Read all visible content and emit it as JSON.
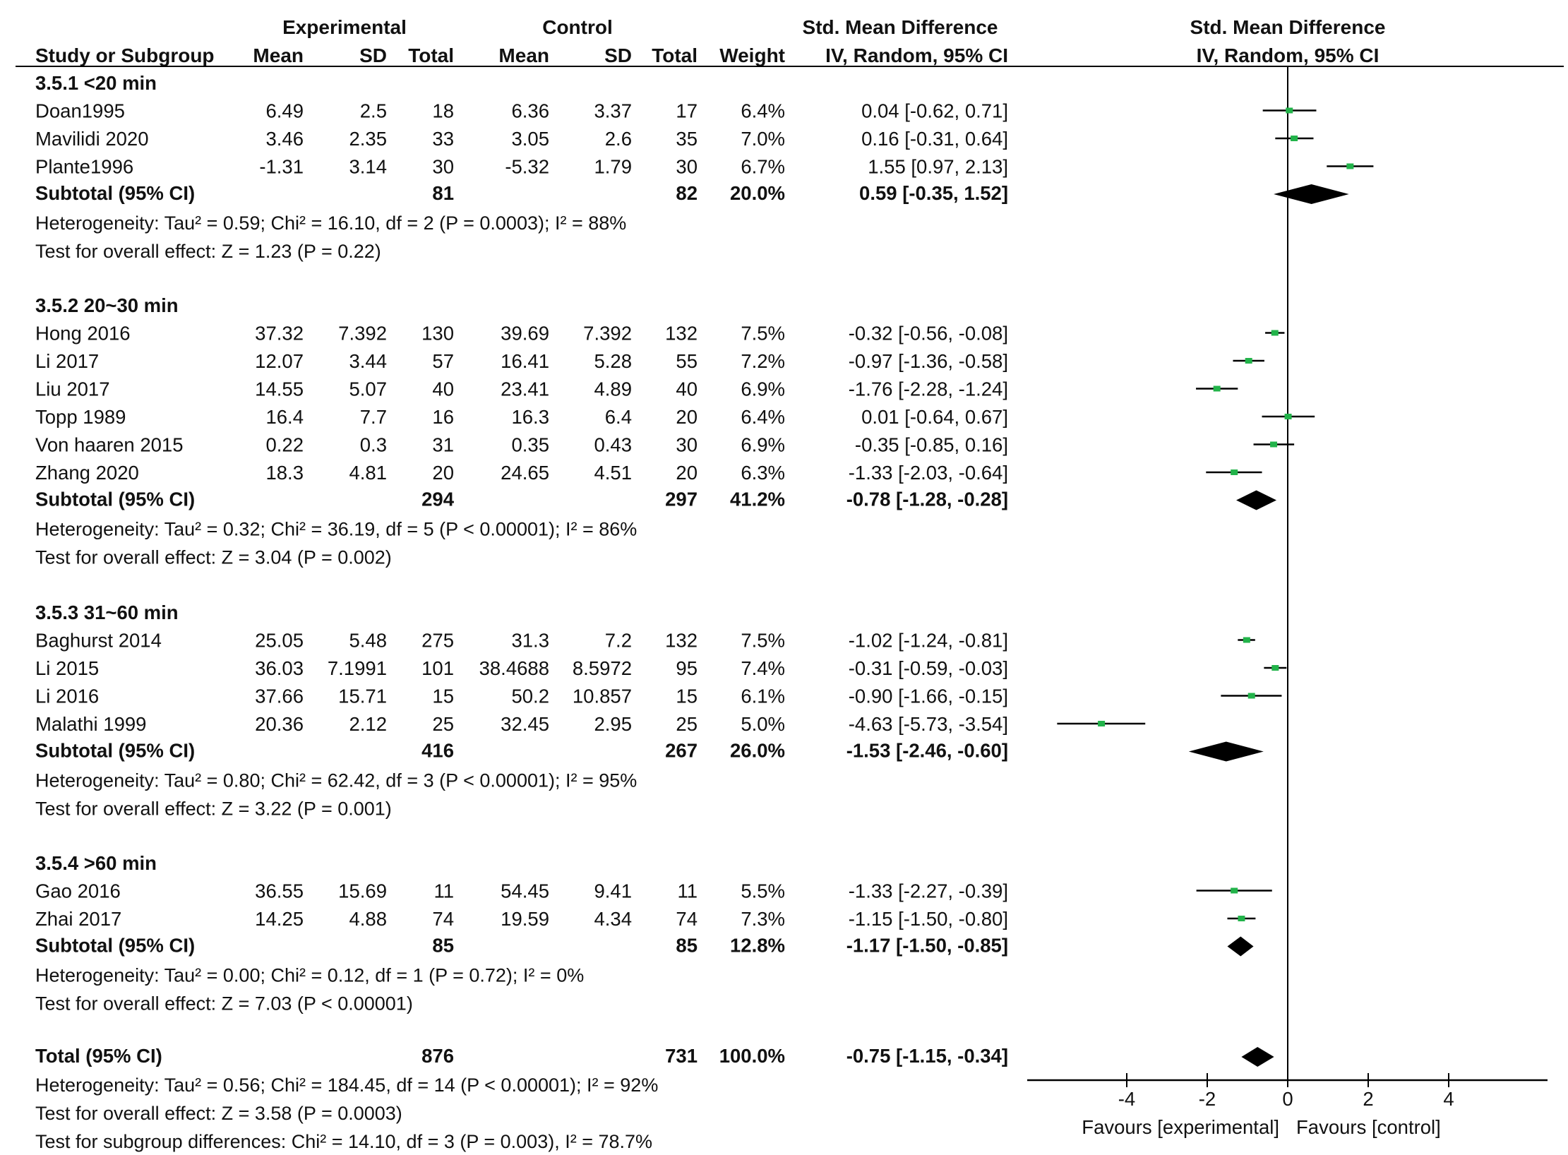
{
  "chart_data": {
    "type": "forest",
    "headers": {
      "group_experimental": "Experimental",
      "group_control": "Control",
      "group_smd": "Std. Mean Difference",
      "plot_title": "Std. Mean Difference",
      "col_study": "Study or Subgroup",
      "col_exp_mean": "Mean",
      "col_exp_sd": "SD",
      "col_exp_total": "Total",
      "col_ctl_mean": "Mean",
      "col_ctl_sd": "SD",
      "col_ctl_total": "Total",
      "col_weight": "Weight",
      "col_smd_method": "IV, Random, 95% CI",
      "plot_method": "IV, Random, 95% CI"
    },
    "subgroups": [
      {
        "title": "3.5.1 <20 min",
        "studies": [
          {
            "study": "Doan1995",
            "exp_mean": "6.49",
            "exp_sd": "2.5",
            "exp_total": "18",
            "ctl_mean": "6.36",
            "ctl_sd": "3.37",
            "ctl_total": "17",
            "weight": "6.4%",
            "ci_text": "0.04 [-0.62, 0.71]",
            "est": 0.04,
            "lo": -0.62,
            "hi": 0.71
          },
          {
            "study": "Mavilidi 2020",
            "exp_mean": "3.46",
            "exp_sd": "2.35",
            "exp_total": "33",
            "ctl_mean": "3.05",
            "ctl_sd": "2.6",
            "ctl_total": "35",
            "weight": "7.0%",
            "ci_text": "0.16 [-0.31, 0.64]",
            "est": 0.16,
            "lo": -0.31,
            "hi": 0.64
          },
          {
            "study": "Plante1996",
            "exp_mean": "-1.31",
            "exp_sd": "3.14",
            "exp_total": "30",
            "ctl_mean": "-5.32",
            "ctl_sd": "1.79",
            "ctl_total": "30",
            "weight": "6.7%",
            "ci_text": "1.55 [0.97, 2.13]",
            "est": 1.55,
            "lo": 0.97,
            "hi": 2.13
          }
        ],
        "subtotal": {
          "label": "Subtotal (95% CI)",
          "exp_total": "81",
          "ctl_total": "82",
          "weight": "20.0%",
          "ci_text": "0.59 [-0.35, 1.52]",
          "est": 0.59,
          "lo": -0.35,
          "hi": 1.52
        },
        "heterogeneity": "Heterogeneity: Tau² = 0.59; Chi² = 16.10, df = 2 (P = 0.0003); I² = 88%",
        "overall_effect": "Test for overall effect: Z = 1.23 (P = 0.22)"
      },
      {
        "title": "3.5.2 20~30 min",
        "studies": [
          {
            "study": "Hong 2016",
            "exp_mean": "37.32",
            "exp_sd": "7.392",
            "exp_total": "130",
            "ctl_mean": "39.69",
            "ctl_sd": "7.392",
            "ctl_total": "132",
            "weight": "7.5%",
            "ci_text": "-0.32 [-0.56, -0.08]",
            "est": -0.32,
            "lo": -0.56,
            "hi": -0.08
          },
          {
            "study": "Li 2017",
            "exp_mean": "12.07",
            "exp_sd": "3.44",
            "exp_total": "57",
            "ctl_mean": "16.41",
            "ctl_sd": "5.28",
            "ctl_total": "55",
            "weight": "7.2%",
            "ci_text": "-0.97 [-1.36, -0.58]",
            "est": -0.97,
            "lo": -1.36,
            "hi": -0.58
          },
          {
            "study": "Liu 2017",
            "exp_mean": "14.55",
            "exp_sd": "5.07",
            "exp_total": "40",
            "ctl_mean": "23.41",
            "ctl_sd": "4.89",
            "ctl_total": "40",
            "weight": "6.9%",
            "ci_text": "-1.76 [-2.28, -1.24]",
            "est": -1.76,
            "lo": -2.28,
            "hi": -1.24
          },
          {
            "study": "Topp 1989",
            "exp_mean": "16.4",
            "exp_sd": "7.7",
            "exp_total": "16",
            "ctl_mean": "16.3",
            "ctl_sd": "6.4",
            "ctl_total": "20",
            "weight": "6.4%",
            "ci_text": "0.01 [-0.64, 0.67]",
            "est": 0.01,
            "lo": -0.64,
            "hi": 0.67
          },
          {
            "study": "Von haaren 2015",
            "exp_mean": "0.22",
            "exp_sd": "0.3",
            "exp_total": "31",
            "ctl_mean": "0.35",
            "ctl_sd": "0.43",
            "ctl_total": "30",
            "weight": "6.9%",
            "ci_text": "-0.35 [-0.85, 0.16]",
            "est": -0.35,
            "lo": -0.85,
            "hi": 0.16
          },
          {
            "study": "Zhang 2020",
            "exp_mean": "18.3",
            "exp_sd": "4.81",
            "exp_total": "20",
            "ctl_mean": "24.65",
            "ctl_sd": "4.51",
            "ctl_total": "20",
            "weight": "6.3%",
            "ci_text": "-1.33 [-2.03, -0.64]",
            "est": -1.33,
            "lo": -2.03,
            "hi": -0.64
          }
        ],
        "subtotal": {
          "label": "Subtotal (95% CI)",
          "exp_total": "294",
          "ctl_total": "297",
          "weight": "41.2%",
          "ci_text": "-0.78 [-1.28, -0.28]",
          "est": -0.78,
          "lo": -1.28,
          "hi": -0.28
        },
        "heterogeneity": "Heterogeneity: Tau² = 0.32; Chi² = 36.19, df = 5 (P < 0.00001); I² = 86%",
        "overall_effect": "Test for overall effect: Z = 3.04 (P = 0.002)"
      },
      {
        "title": "3.5.3 31~60 min",
        "studies": [
          {
            "study": "Baghurst 2014",
            "exp_mean": "25.05",
            "exp_sd": "5.48",
            "exp_total": "275",
            "ctl_mean": "31.3",
            "ctl_sd": "7.2",
            "ctl_total": "132",
            "weight": "7.5%",
            "ci_text": "-1.02 [-1.24, -0.81]",
            "est": -1.02,
            "lo": -1.24,
            "hi": -0.81
          },
          {
            "study": "Li 2015",
            "exp_mean": "36.03",
            "exp_sd": "7.1991",
            "exp_total": "101",
            "ctl_mean": "38.4688",
            "ctl_sd": "8.5972",
            "ctl_total": "95",
            "weight": "7.4%",
            "ci_text": "-0.31 [-0.59, -0.03]",
            "est": -0.31,
            "lo": -0.59,
            "hi": -0.03
          },
          {
            "study": "Li 2016",
            "exp_mean": "37.66",
            "exp_sd": "15.71",
            "exp_total": "15",
            "ctl_mean": "50.2",
            "ctl_sd": "10.857",
            "ctl_total": "15",
            "weight": "6.1%",
            "ci_text": "-0.90 [-1.66, -0.15]",
            "est": -0.9,
            "lo": -1.66,
            "hi": -0.15
          },
          {
            "study": "Malathi 1999",
            "exp_mean": "20.36",
            "exp_sd": "2.12",
            "exp_total": "25",
            "ctl_mean": "32.45",
            "ctl_sd": "2.95",
            "ctl_total": "25",
            "weight": "5.0%",
            "ci_text": "-4.63 [-5.73, -3.54]",
            "est": -4.63,
            "lo": -5.73,
            "hi": -3.54
          }
        ],
        "subtotal": {
          "label": "Subtotal (95% CI)",
          "exp_total": "416",
          "ctl_total": "267",
          "weight": "26.0%",
          "ci_text": "-1.53 [-2.46, -0.60]",
          "est": -1.53,
          "lo": -2.46,
          "hi": -0.6
        },
        "heterogeneity": "Heterogeneity: Tau² = 0.80; Chi² = 62.42, df = 3 (P < 0.00001); I² = 95%",
        "overall_effect": "Test for overall effect: Z = 3.22 (P = 0.001)"
      },
      {
        "title": "3.5.4 >60 min",
        "studies": [
          {
            "study": "Gao 2016",
            "exp_mean": "36.55",
            "exp_sd": "15.69",
            "exp_total": "11",
            "ctl_mean": "54.45",
            "ctl_sd": "9.41",
            "ctl_total": "11",
            "weight": "5.5%",
            "ci_text": "-1.33 [-2.27, -0.39]",
            "est": -1.33,
            "lo": -2.27,
            "hi": -0.39
          },
          {
            "study": "Zhai 2017",
            "exp_mean": "14.25",
            "exp_sd": "4.88",
            "exp_total": "74",
            "ctl_mean": "19.59",
            "ctl_sd": "4.34",
            "ctl_total": "74",
            "weight": "7.3%",
            "ci_text": "-1.15 [-1.50, -0.80]",
            "est": -1.15,
            "lo": -1.5,
            "hi": -0.8
          }
        ],
        "subtotal": {
          "label": "Subtotal (95% CI)",
          "exp_total": "85",
          "ctl_total": "85",
          "weight": "12.8%",
          "ci_text": "-1.17 [-1.50, -0.85]",
          "est": -1.17,
          "lo": -1.5,
          "hi": -0.85
        },
        "heterogeneity": "Heterogeneity: Tau² = 0.00; Chi² = 0.12, df = 1 (P = 0.72); I² = 0%",
        "overall_effect": "Test for overall effect: Z = 7.03 (P < 0.00001)"
      }
    ],
    "total": {
      "label": "Total (95% CI)",
      "exp_total": "876",
      "ctl_total": "731",
      "weight": "100.0%",
      "ci_text": "-0.75 [-1.15, -0.34]",
      "est": -0.75,
      "lo": -1.15,
      "hi": -0.34
    },
    "footer": [
      "Heterogeneity: Tau² = 0.56; Chi² = 184.45, df = 14 (P < 0.00001); I² = 92%",
      "Test for overall effect: Z = 3.58 (P = 0.0003)",
      "Test for subgroup differences: Chi² = 14.10, df = 3 (P = 0.003), I² = 78.7%"
    ],
    "x_axis": {
      "ticks": [
        -4,
        -2,
        0,
        2,
        4
      ],
      "tick_labels": [
        "-4",
        "-2",
        "0",
        "2",
        "4"
      ],
      "range": [
        -6.5,
        6.5
      ]
    },
    "favours_left": "Favours [experimental]",
    "favours_right": "Favours [control]",
    "colors": {
      "point": "#22b34a",
      "diamond": "#000000",
      "line": "#000000"
    }
  }
}
